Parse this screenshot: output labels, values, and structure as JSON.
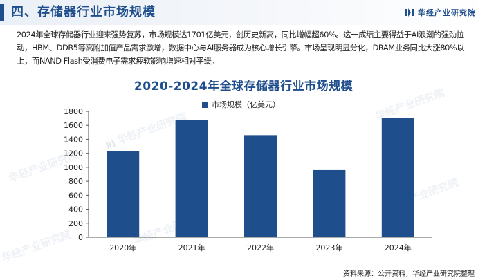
{
  "header": {
    "title": "四、存储器行业市场规模",
    "brand": "华经产业研究院"
  },
  "intro": "2024年全球存储器行业迎来强势复苏，市场规模达1701亿美元，创历史新高，同比增幅超60%。这一成绩主要得益于AI浪潮的强劲拉动，HBM、DDR5等高附加值产品需求激增，数据中心与AI服务器成为核心增长引擎。市场呈现明显分化，DRAM业务同比大涨80%以上，而NAND Flash受消费电子需求疲软影响增速相对平缓。",
  "watermark": "华经产业研究院",
  "source": "资料来源：公开资料，华经产业研究院整理",
  "colors": {
    "accent": "#1f4e8c",
    "bar": "#1f4e8c"
  },
  "chart_data": {
    "type": "bar",
    "title": "2020-2024年全球存储器行业市场规模",
    "categories": [
      "2020年",
      "2021年",
      "2022年",
      "2023年",
      "2024年"
    ],
    "series": [
      {
        "name": "市场规模（亿美元）",
        "values": [
          1230,
          1680,
          1460,
          960,
          1701
        ]
      }
    ],
    "ylim": [
      0,
      1800
    ],
    "yticks": [
      0,
      200,
      400,
      600,
      800,
      1000,
      1200,
      1400,
      1600,
      1800
    ],
    "legend_position": "top-center",
    "grid": false
  }
}
